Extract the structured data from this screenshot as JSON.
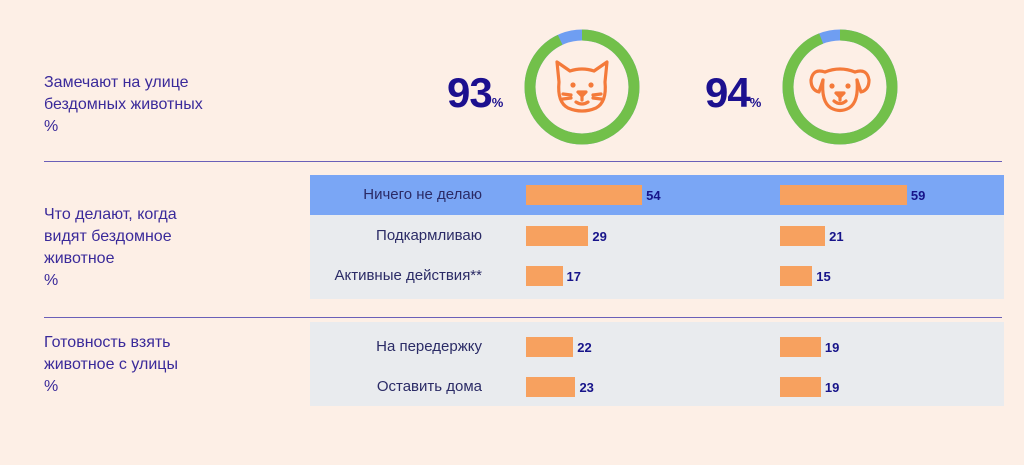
{
  "colors": {
    "background": "#fdefe6",
    "label": "#3a2a9a",
    "highlight": "#7aa6f5",
    "panel": "#e9ebee",
    "bar": "#f7a15f",
    "value": "#17148a",
    "donut_main": "#72c04a",
    "donut_rest": "#6f9ef2",
    "icon": "#f47a3a"
  },
  "sections": {
    "notice": {
      "label": [
        "Замечают на улице",
        "бездомных животных",
        "%"
      ]
    },
    "actions": {
      "label": [
        "Что делают, когда",
        "видят бездомное",
        "животное",
        "%"
      ]
    },
    "adopt": {
      "label": [
        "Готовность взять",
        "животное с улицы",
        "%"
      ]
    }
  },
  "chart_data": [
    {
      "type": "pie",
      "group": "cats",
      "icon": "cat-icon",
      "value": 93,
      "unit": "%"
    },
    {
      "type": "pie",
      "group": "dogs",
      "icon": "dog-icon",
      "value": 94,
      "unit": "%"
    },
    {
      "type": "bar",
      "section": "actions",
      "categories": [
        "Ничего не делаю",
        "Подкармливаю",
        "Активные действия**"
      ],
      "series": [
        {
          "group": "cats",
          "values": [
            54,
            29,
            17
          ]
        },
        {
          "group": "dogs",
          "values": [
            59,
            21,
            15
          ]
        }
      ],
      "highlighted_category": "Ничего не делаю"
    },
    {
      "type": "bar",
      "section": "adopt",
      "categories": [
        "На передержку",
        "Оставить дома"
      ],
      "series": [
        {
          "group": "cats",
          "values": [
            22,
            23
          ]
        },
        {
          "group": "dogs",
          "values": [
            19,
            19
          ]
        }
      ]
    }
  ]
}
